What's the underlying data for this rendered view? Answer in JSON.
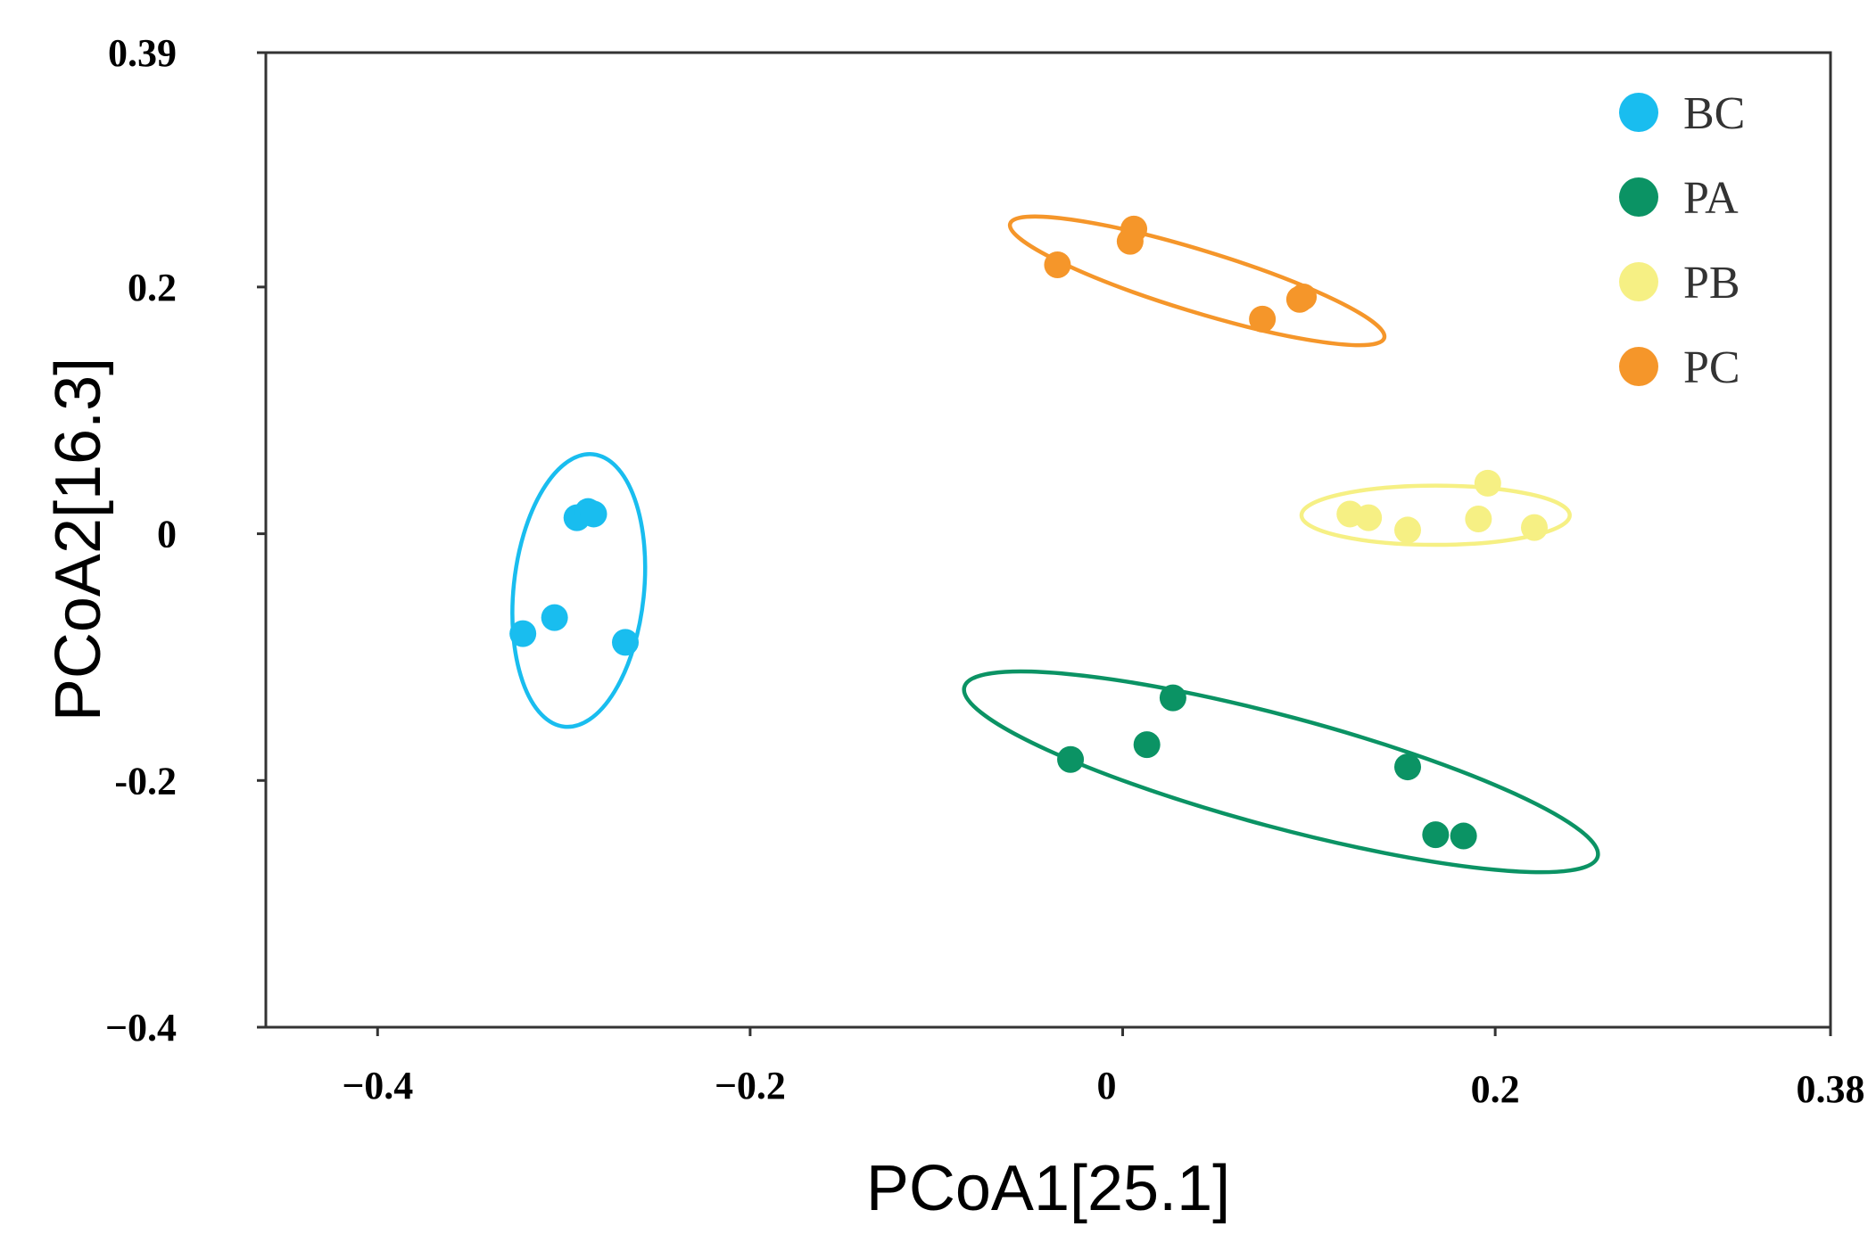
{
  "chart_data": {
    "type": "scatter",
    "title": "",
    "xlabel": "PCoA1[25.1]",
    "ylabel": "PCoA2[16.3]",
    "xlim": [
      -0.46,
      0.38
    ],
    "ylim": [
      -0.4,
      0.39
    ],
    "xticks": [
      {
        "value": -0.4,
        "label": "−0.4"
      },
      {
        "value": -0.2,
        "label": "−0.2"
      },
      {
        "value": 0,
        "label": "0"
      },
      {
        "value": 0.2,
        "label": "0.2"
      },
      {
        "value": 0.38,
        "label": "0.38"
      }
    ],
    "yticks": [
      {
        "value": 0.39,
        "label": "0.39"
      },
      {
        "value": 0.2,
        "label": "0.2"
      },
      {
        "value": 0,
        "label": "0"
      },
      {
        "value": -0.2,
        "label": "-0.2"
      },
      {
        "value": -0.4,
        "label": "−0.4"
      }
    ],
    "grid": false,
    "legend_position": "top-right",
    "series": [
      {
        "name": "BC",
        "color": "#19BDEF",
        "points": [
          {
            "x": -0.322,
            "y": -0.081
          },
          {
            "x": -0.305,
            "y": -0.068
          },
          {
            "x": -0.293,
            "y": 0.013
          },
          {
            "x": -0.287,
            "y": 0.018
          },
          {
            "x": -0.284,
            "y": 0.016
          },
          {
            "x": -0.267,
            "y": -0.088
          }
        ],
        "ellipse": {
          "cx": -0.292,
          "cy": -0.046,
          "rx": 0.035,
          "ry": 0.111,
          "angle": 6
        }
      },
      {
        "name": "PA",
        "color": "#0B9364",
        "points": [
          {
            "x": -0.028,
            "y": -0.183
          },
          {
            "x": 0.013,
            "y": -0.171
          },
          {
            "x": 0.027,
            "y": -0.133
          },
          {
            "x": 0.153,
            "y": -0.189
          },
          {
            "x": 0.168,
            "y": -0.244
          },
          {
            "x": 0.183,
            "y": -0.245
          }
        ],
        "ellipse": {
          "cx": 0.085,
          "cy": -0.193,
          "rx": 0.176,
          "ry": 0.045,
          "angle": 15
        }
      },
      {
        "name": "PB",
        "color": "#F6F084",
        "points": [
          {
            "x": 0.122,
            "y": 0.016
          },
          {
            "x": 0.132,
            "y": 0.013
          },
          {
            "x": 0.153,
            "y": 0.003
          },
          {
            "x": 0.191,
            "y": 0.012
          },
          {
            "x": 0.196,
            "y": 0.041
          },
          {
            "x": 0.221,
            "y": 0.005
          }
        ],
        "ellipse": {
          "cx": 0.168,
          "cy": 0.015,
          "rx": 0.072,
          "ry": 0.024,
          "angle": 0
        }
      },
      {
        "name": "PC",
        "color": "#F5962A",
        "points": [
          {
            "x": -0.035,
            "y": 0.218
          },
          {
            "x": 0.004,
            "y": 0.237
          },
          {
            "x": 0.006,
            "y": 0.247
          },
          {
            "x": 0.075,
            "y": 0.174
          },
          {
            "x": 0.095,
            "y": 0.19
          },
          {
            "x": 0.097,
            "y": 0.192
          }
        ],
        "ellipse": {
          "cx": 0.04,
          "cy": 0.205,
          "rx": 0.105,
          "ry": 0.025,
          "angle": 17
        }
      }
    ]
  }
}
